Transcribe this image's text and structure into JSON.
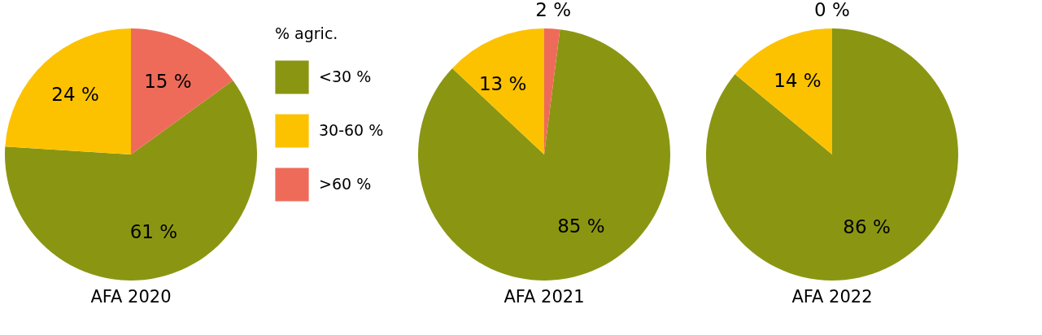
{
  "chart_data": [
    {
      "type": "pie",
      "title": "AFA 2020",
      "categories": [
        "<30 %",
        "30-60 %",
        ">60 %"
      ],
      "values": [
        61,
        24,
        15
      ],
      "colors": [
        "#8a9612",
        "#fcc200",
        "#ee6b5a"
      ],
      "value_labels": [
        "61 %",
        "24 %",
        "15 %"
      ],
      "legend": "right",
      "legend_title": "% agric."
    },
    {
      "type": "pie",
      "title": "AFA 2021",
      "values": [
        85,
        13,
        2
      ],
      "colors": [
        "#8a9612",
        "#fcc200",
        "#ee6b5a"
      ],
      "value_labels": [
        "85 %",
        "13 %",
        "2 %"
      ]
    },
    {
      "type": "pie",
      "title": "AFA 2022",
      "values": [
        86,
        14,
        0
      ],
      "colors": [
        "#8a9612",
        "#fcc200",
        "#ee6b5a"
      ],
      "value_labels": [
        "86 %",
        "14 %",
        "0 %"
      ]
    }
  ]
}
